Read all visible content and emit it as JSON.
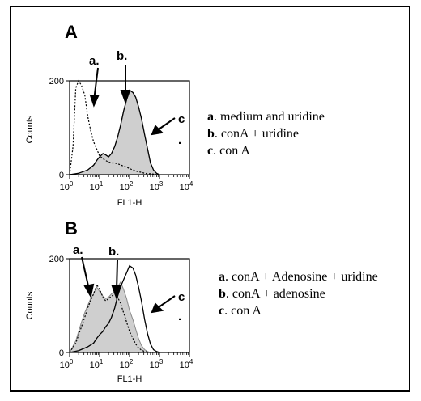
{
  "chart_data": [
    {
      "type": "area",
      "panel": "A",
      "xlabel": "FL1-H",
      "ylabel": "Counts",
      "xscale": "log",
      "xlim": [
        1,
        10000
      ],
      "ylim": [
        0,
        200
      ],
      "x_ticks": [
        "0",
        "1",
        "2",
        "3",
        "4"
      ],
      "y_ticks": [
        "0",
        "200"
      ],
      "series": [
        {
          "key": "a",
          "style": "dotted",
          "x": [
            1,
            1.3,
            1.6,
            2,
            2.5,
            3.2,
            4,
            5,
            6.3,
            8,
            10,
            13,
            16,
            20,
            25,
            32,
            40,
            50,
            63,
            80,
            100,
            130,
            160,
            200,
            250,
            320,
            400,
            500,
            630,
            800,
            1000
          ],
          "values": [
            0,
            60,
            185,
            200,
            190,
            170,
            125,
            95,
            70,
            55,
            40,
            34,
            30,
            27,
            25,
            25,
            23,
            21,
            18,
            16,
            13,
            10,
            8,
            6,
            5,
            3,
            2,
            2,
            1,
            0,
            0
          ]
        },
        {
          "key": "b",
          "style": "filled",
          "x": [
            1,
            2,
            4,
            6.3,
            8,
            10,
            13,
            16,
            20,
            25,
            32,
            40,
            50,
            63,
            80,
            100,
            130,
            160,
            200,
            250,
            320,
            400,
            500,
            630,
            800,
            1000
          ],
          "values": [
            0,
            3,
            10,
            20,
            30,
            38,
            45,
            42,
            38,
            45,
            60,
            80,
            105,
            135,
            160,
            180,
            175,
            165,
            145,
            120,
            85,
            55,
            25,
            10,
            3,
            0
          ]
        },
        {
          "key": "c",
          "style": "solid",
          "x": [
            1,
            2,
            4,
            6.3,
            8,
            10,
            13,
            16,
            20,
            25,
            32,
            40,
            50,
            63,
            80,
            100,
            130,
            160,
            200,
            250,
            320,
            400,
            500,
            630,
            800,
            1000
          ],
          "values": [
            0,
            3,
            10,
            20,
            30,
            38,
            45,
            42,
            38,
            45,
            60,
            80,
            105,
            135,
            160,
            180,
            175,
            165,
            145,
            120,
            85,
            55,
            25,
            10,
            3,
            0
          ]
        }
      ],
      "annotations": [
        "a.",
        "b.",
        "c",
        "."
      ],
      "legend": [
        {
          "key": "a",
          "text": ". medium and uridine"
        },
        {
          "key": "b",
          "text": ". conA + uridine"
        },
        {
          "key": "c",
          "text": ". con A"
        }
      ]
    },
    {
      "type": "area",
      "panel": "B",
      "xlabel": "FL1-H",
      "ylabel": "Counts",
      "xscale": "log",
      "xlim": [
        1,
        10000
      ],
      "ylim": [
        0,
        200
      ],
      "x_ticks": [
        "0",
        "1",
        "2",
        "3",
        "4"
      ],
      "y_ticks": [
        "0",
        "200"
      ],
      "series": [
        {
          "key": "a",
          "style": "filled",
          "x": [
            1,
            1.6,
            2.5,
            3.2,
            4,
            5,
            6.3,
            8,
            10,
            13,
            16,
            20,
            25,
            32,
            40,
            50,
            63,
            80,
            100,
            130,
            160,
            200,
            250,
            320,
            400,
            500
          ],
          "values": [
            0,
            25,
            65,
            85,
            100,
            115,
            125,
            140,
            130,
            120,
            115,
            118,
            125,
            130,
            140,
            150,
            135,
            115,
            90,
            70,
            50,
            30,
            15,
            6,
            2,
            0
          ]
        },
        {
          "key": "b",
          "style": "dotted",
          "x": [
            1,
            1.6,
            2.5,
            3.2,
            4,
            5,
            6.3,
            8,
            10,
            13,
            16,
            20,
            25,
            32,
            40,
            50,
            63,
            80,
            100,
            130,
            160,
            200,
            250,
            320,
            400,
            500
          ],
          "values": [
            0,
            20,
            55,
            75,
            95,
            110,
            125,
            145,
            135,
            118,
            110,
            115,
            120,
            125,
            118,
            105,
            85,
            65,
            45,
            30,
            18,
            10,
            5,
            2,
            1,
            0
          ]
        },
        {
          "key": "c",
          "style": "solid",
          "x": [
            1,
            2,
            4,
            6.3,
            8,
            10,
            13,
            16,
            20,
            25,
            32,
            40,
            50,
            63,
            80,
            100,
            130,
            160,
            200,
            250,
            320,
            400,
            500,
            630,
            800,
            1000
          ],
          "values": [
            0,
            4,
            12,
            20,
            30,
            38,
            45,
            55,
            62,
            75,
            95,
            120,
            140,
            155,
            170,
            185,
            180,
            165,
            140,
            110,
            70,
            40,
            18,
            6,
            2,
            0
          ]
        }
      ],
      "annotations": [
        "a.",
        "b.",
        "c",
        "."
      ],
      "legend": [
        {
          "key": "a",
          "text": ". conA + Adenosine + uridine"
        },
        {
          "key": "b",
          "text": ". conA + adenosine"
        },
        {
          "key": "c",
          "text": ". con A"
        }
      ]
    }
  ]
}
